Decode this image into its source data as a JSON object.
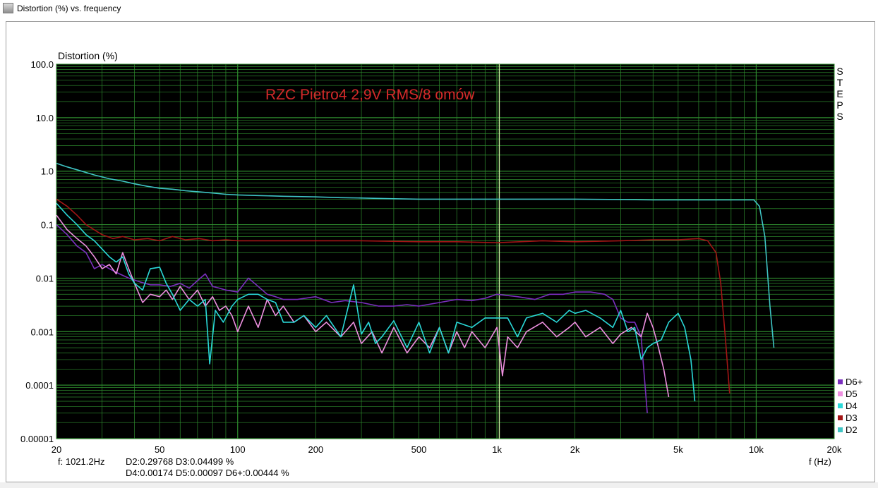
{
  "window": {
    "title": "Distortion (%) vs. frequency",
    "icon": "app-icon"
  },
  "chart_data": {
    "type": "line",
    "title": "RZC Pietro4  2,9V RMS/8 omów",
    "ylabel": "Distortion (%)",
    "xlabel": "f (Hz)",
    "xscale": "log",
    "yscale": "log",
    "xlim": [
      20,
      20000
    ],
    "ylim": [
      1e-05,
      100
    ],
    "grid": true,
    "background": "#000000",
    "grid_color": "#2e8b2e",
    "x_ticks": [
      {
        "v": 20,
        "label": "20"
      },
      {
        "v": 50,
        "label": "50"
      },
      {
        "v": 100,
        "label": "100"
      },
      {
        "v": 200,
        "label": "200"
      },
      {
        "v": 500,
        "label": "500"
      },
      {
        "v": 1000,
        "label": "1k"
      },
      {
        "v": 2000,
        "label": "2k"
      },
      {
        "v": 5000,
        "label": "5k"
      },
      {
        "v": 10000,
        "label": "10k"
      },
      {
        "v": 20000,
        "label": "20k"
      }
    ],
    "y_ticks": [
      {
        "v": 100,
        "label": "100.0"
      },
      {
        "v": 10,
        "label": "10.0"
      },
      {
        "v": 1,
        "label": "1.0"
      },
      {
        "v": 0.1,
        "label": "0.1"
      },
      {
        "v": 0.01,
        "label": "0.01"
      },
      {
        "v": 0.001,
        "label": "0.001"
      },
      {
        "v": 0.0001,
        "label": "0.0001"
      },
      {
        "v": 1e-05,
        "label": "0.00001"
      }
    ],
    "cursor_frequency": 1021.2,
    "side_label": [
      "S",
      "T",
      "E",
      "P",
      "S"
    ],
    "legend_position": "bottom-right",
    "series": [
      {
        "name": "D2",
        "color": "#3fc4c4",
        "x": [
          20,
          22,
          25,
          28,
          32,
          36,
          40,
          45,
          50,
          56,
          63,
          71,
          80,
          90,
          100,
          120,
          150,
          200,
          250,
          300,
          400,
          500,
          700,
          1000,
          1500,
          2000,
          3000,
          4000,
          5000,
          6000,
          7000,
          8000,
          9000,
          9800,
          10300,
          10800,
          11300,
          11700
        ],
        "y": [
          1.4,
          1.2,
          1.0,
          0.85,
          0.72,
          0.65,
          0.58,
          0.52,
          0.48,
          0.46,
          0.43,
          0.41,
          0.39,
          0.37,
          0.36,
          0.35,
          0.34,
          0.33,
          0.32,
          0.315,
          0.305,
          0.3,
          0.3,
          0.3,
          0.3,
          0.3,
          0.295,
          0.29,
          0.29,
          0.29,
          0.29,
          0.29,
          0.29,
          0.29,
          0.22,
          0.06,
          0.003,
          0.0005
        ]
      },
      {
        "name": "D3",
        "color": "#a31515",
        "x": [
          20,
          22,
          24,
          26,
          28,
          30,
          33,
          36,
          40,
          45,
          50,
          56,
          63,
          71,
          80,
          90,
          100,
          120,
          150,
          200,
          300,
          500,
          700,
          1000,
          1500,
          2000,
          3000,
          4000,
          5000,
          6000,
          6500,
          7000,
          7300,
          7600,
          7900
        ],
        "y": [
          0.3,
          0.22,
          0.15,
          0.1,
          0.08,
          0.065,
          0.055,
          0.06,
          0.052,
          0.055,
          0.05,
          0.06,
          0.052,
          0.055,
          0.05,
          0.052,
          0.05,
          0.05,
          0.05,
          0.05,
          0.05,
          0.048,
          0.048,
          0.046,
          0.05,
          0.048,
          0.05,
          0.052,
          0.052,
          0.055,
          0.05,
          0.03,
          0.008,
          0.0008,
          7e-05
        ]
      },
      {
        "name": "D4",
        "color": "#2ad8d8",
        "x": [
          20,
          22,
          24,
          26,
          28,
          30,
          32,
          34,
          36,
          38,
          40,
          43,
          46,
          50,
          53,
          56,
          60,
          65,
          70,
          75,
          78,
          82,
          88,
          95,
          100,
          110,
          120,
          130,
          140,
          150,
          165,
          180,
          200,
          220,
          250,
          280,
          300,
          320,
          340,
          360,
          400,
          450,
          500,
          550,
          600,
          650,
          700,
          800,
          900,
          1000,
          1100,
          1200,
          1300,
          1500,
          1700,
          1900,
          2000,
          2200,
          2500,
          2800,
          3000,
          3200,
          3400,
          3600,
          3800,
          4000,
          4300,
          4600,
          5000,
          5300,
          5600,
          5800
        ],
        "y": [
          0.25,
          0.15,
          0.1,
          0.065,
          0.05,
          0.035,
          0.025,
          0.02,
          0.025,
          0.012,
          0.008,
          0.006,
          0.015,
          0.016,
          0.008,
          0.005,
          0.0025,
          0.004,
          0.003,
          0.004,
          0.00025,
          0.0025,
          0.0015,
          0.003,
          0.004,
          0.005,
          0.005,
          0.004,
          0.0035,
          0.0015,
          0.0015,
          0.002,
          0.0012,
          0.002,
          0.0008,
          0.0075,
          0.0009,
          0.0015,
          0.0006,
          0.0008,
          0.0016,
          0.0005,
          0.0015,
          0.0004,
          0.0012,
          0.0004,
          0.0015,
          0.0012,
          0.0018,
          0.0018,
          0.0018,
          0.0008,
          0.0018,
          0.0022,
          0.0015,
          0.0025,
          0.0022,
          0.0025,
          0.0018,
          0.0012,
          0.0025,
          0.001,
          0.0012,
          0.0003,
          0.0005,
          0.0006,
          0.0007,
          0.0015,
          0.0022,
          0.0012,
          0.0003,
          5e-05
        ]
      },
      {
        "name": "D5",
        "color": "#ee90e0",
        "x": [
          20,
          22,
          24,
          26,
          28,
          30,
          32,
          34,
          36,
          38,
          40,
          43,
          46,
          50,
          53,
          56,
          60,
          65,
          70,
          75,
          80,
          85,
          90,
          95,
          100,
          110,
          120,
          130,
          140,
          150,
          165,
          180,
          200,
          220,
          250,
          280,
          300,
          330,
          360,
          400,
          450,
          500,
          550,
          600,
          650,
          700,
          750,
          800,
          900,
          1000,
          1050,
          1100,
          1200,
          1300,
          1500,
          1700,
          1900,
          2000,
          2200,
          2500,
          2800,
          3000,
          3300,
          3600,
          3800,
          4000,
          4200,
          4400,
          4600
        ],
        "y": [
          0.15,
          0.08,
          0.055,
          0.04,
          0.025,
          0.015,
          0.018,
          0.012,
          0.03,
          0.015,
          0.008,
          0.0035,
          0.005,
          0.0045,
          0.006,
          0.004,
          0.007,
          0.004,
          0.006,
          0.003,
          0.0045,
          0.0025,
          0.003,
          0.002,
          0.001,
          0.003,
          0.0012,
          0.004,
          0.002,
          0.003,
          0.0015,
          0.002,
          0.001,
          0.0015,
          0.0008,
          0.0015,
          0.0006,
          0.001,
          0.0004,
          0.0012,
          0.0004,
          0.0008,
          0.0005,
          0.0012,
          0.0004,
          0.001,
          0.0005,
          0.001,
          0.0005,
          0.0012,
          0.00015,
          0.0008,
          0.0005,
          0.001,
          0.0015,
          0.0008,
          0.0012,
          0.0015,
          0.0008,
          0.0012,
          0.0006,
          0.0009,
          0.0012,
          0.0008,
          0.0022,
          0.0012,
          0.0005,
          0.0002,
          6e-05
        ]
      },
      {
        "name": "D6+",
        "color": "#7b2fbf",
        "x": [
          20,
          22,
          24,
          26,
          28,
          30,
          32,
          35,
          38,
          42,
          46,
          50,
          55,
          60,
          65,
          70,
          75,
          80,
          85,
          90,
          100,
          110,
          120,
          130,
          140,
          150,
          170,
          200,
          230,
          260,
          300,
          350,
          400,
          450,
          500,
          600,
          700,
          800,
          900,
          1000,
          1200,
          1400,
          1600,
          1800,
          2000,
          2300,
          2600,
          2800,
          3000,
          3200,
          3400,
          3600,
          3800
        ],
        "y": [
          0.1,
          0.065,
          0.04,
          0.03,
          0.015,
          0.018,
          0.015,
          0.012,
          0.01,
          0.0085,
          0.0075,
          0.0075,
          0.007,
          0.008,
          0.0065,
          0.009,
          0.012,
          0.007,
          0.0065,
          0.006,
          0.0055,
          0.01,
          0.007,
          0.005,
          0.0045,
          0.004,
          0.004,
          0.0045,
          0.0035,
          0.0038,
          0.0035,
          0.003,
          0.003,
          0.0032,
          0.003,
          0.0035,
          0.004,
          0.0038,
          0.0042,
          0.005,
          0.0045,
          0.004,
          0.005,
          0.005,
          0.0055,
          0.0055,
          0.005,
          0.004,
          0.0018,
          0.0015,
          0.0015,
          0.0008,
          3e-05
        ]
      }
    ]
  },
  "readout": {
    "freq": "f: 1021.2Hz",
    "line1": "D2:0.29768  D3:0.04499 %",
    "line2": "D4:0.00174  D5:0.00097  D6+:0.00444 %"
  }
}
